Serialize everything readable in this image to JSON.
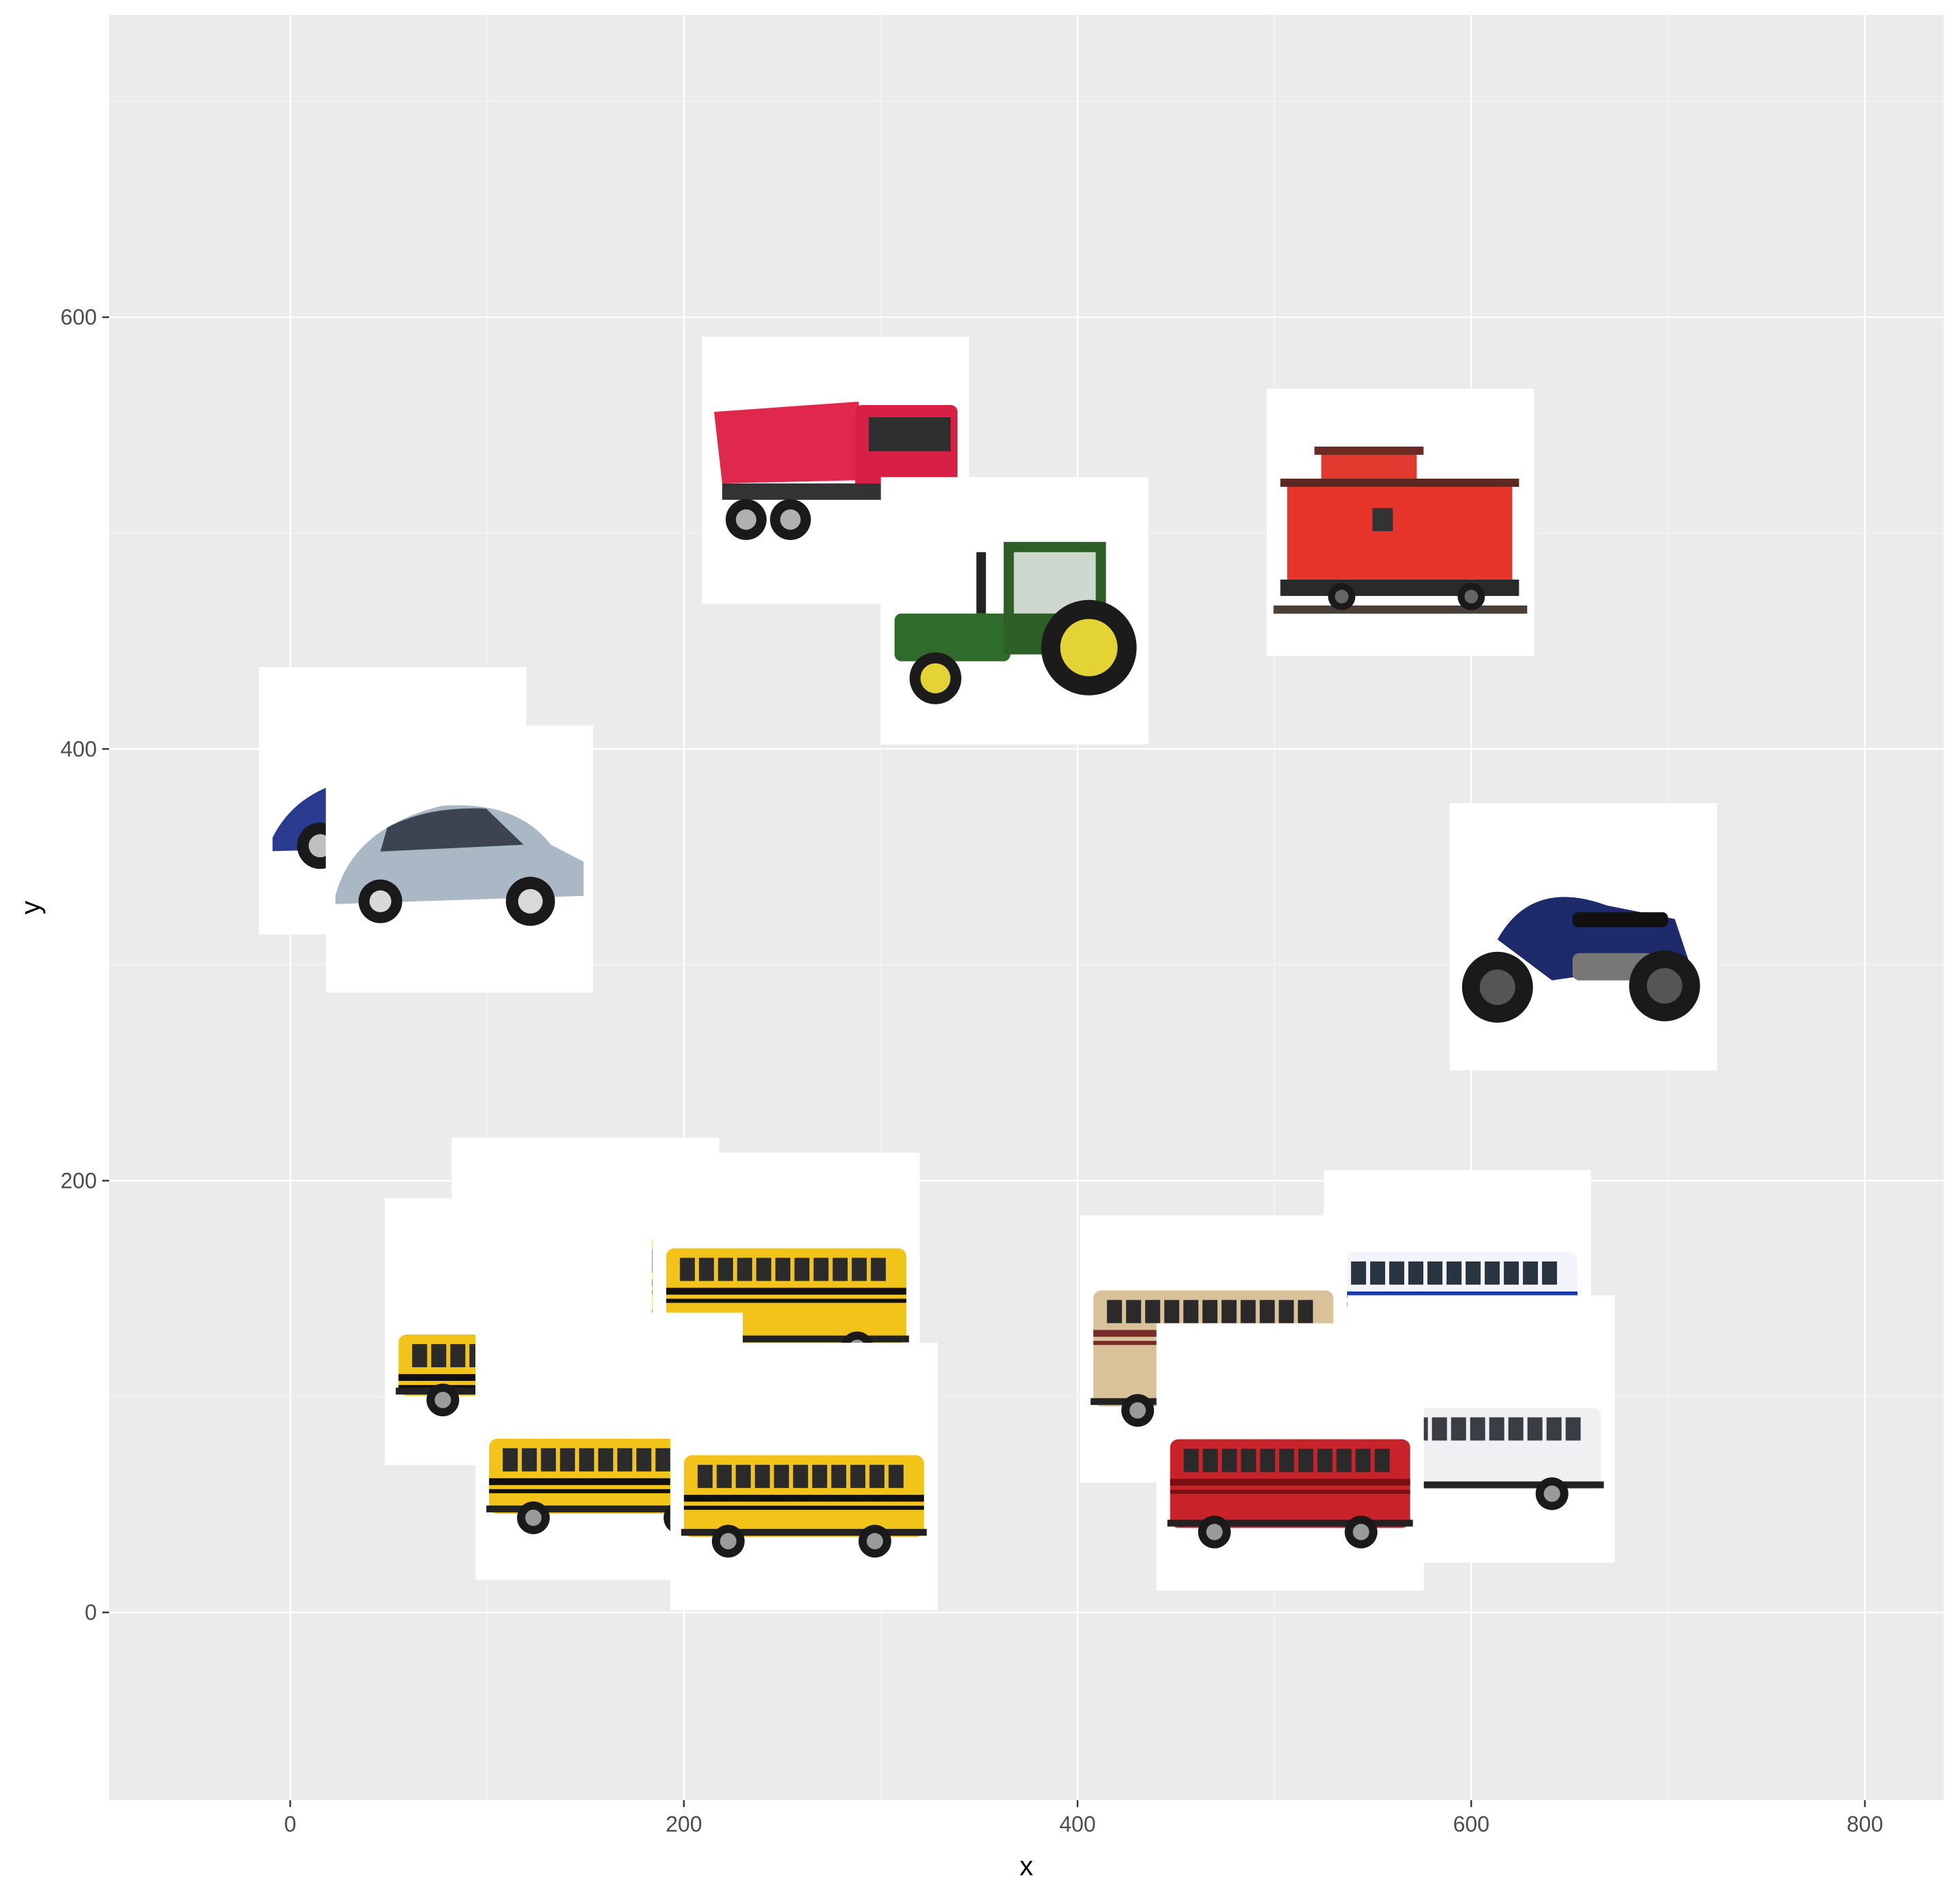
{
  "chart_data": {
    "type": "scatter",
    "title": "",
    "xlabel": "x",
    "ylabel": "y",
    "xlim": [
      -92,
      840
    ],
    "ylim": [
      -87,
      740
    ],
    "x_ticks": [
      0,
      200,
      400,
      600,
      800
    ],
    "y_ticks": [
      0,
      200,
      400,
      600
    ],
    "grid": true,
    "legend": "none",
    "colors": {
      "panel": "#ebebeb",
      "grid_major": "#ffffff",
      "grid_minor": "#f5f5f5",
      "tick_text": "#4d4d4d",
      "axis_title": "#000000"
    },
    "points": [
      {
        "label": "dump-truck",
        "x": 277,
        "y": 529
      },
      {
        "label": "caboose",
        "x": 564,
        "y": 505
      },
      {
        "label": "tractor",
        "x": 368,
        "y": 464
      },
      {
        "label": "car-blue",
        "x": 52,
        "y": 376
      },
      {
        "label": "car-silver",
        "x": 86,
        "y": 349
      },
      {
        "label": "motorcycle",
        "x": 657,
        "y": 313
      },
      {
        "label": "school-bus-1",
        "x": 150,
        "y": 158
      },
      {
        "label": "school-bus-2",
        "x": 252,
        "y": 151
      },
      {
        "label": "school-bus-3",
        "x": 116,
        "y": 130
      },
      {
        "label": "bus-jr",
        "x": 593,
        "y": 143
      },
      {
        "label": "bus-beige",
        "x": 469,
        "y": 122
      },
      {
        "label": "bus-white",
        "x": 605,
        "y": 85
      },
      {
        "label": "bus-red",
        "x": 508,
        "y": 72
      },
      {
        "label": "school-bus-4",
        "x": 162,
        "y": 77
      },
      {
        "label": "school-bus-5",
        "x": 261,
        "y": 63
      }
    ]
  }
}
